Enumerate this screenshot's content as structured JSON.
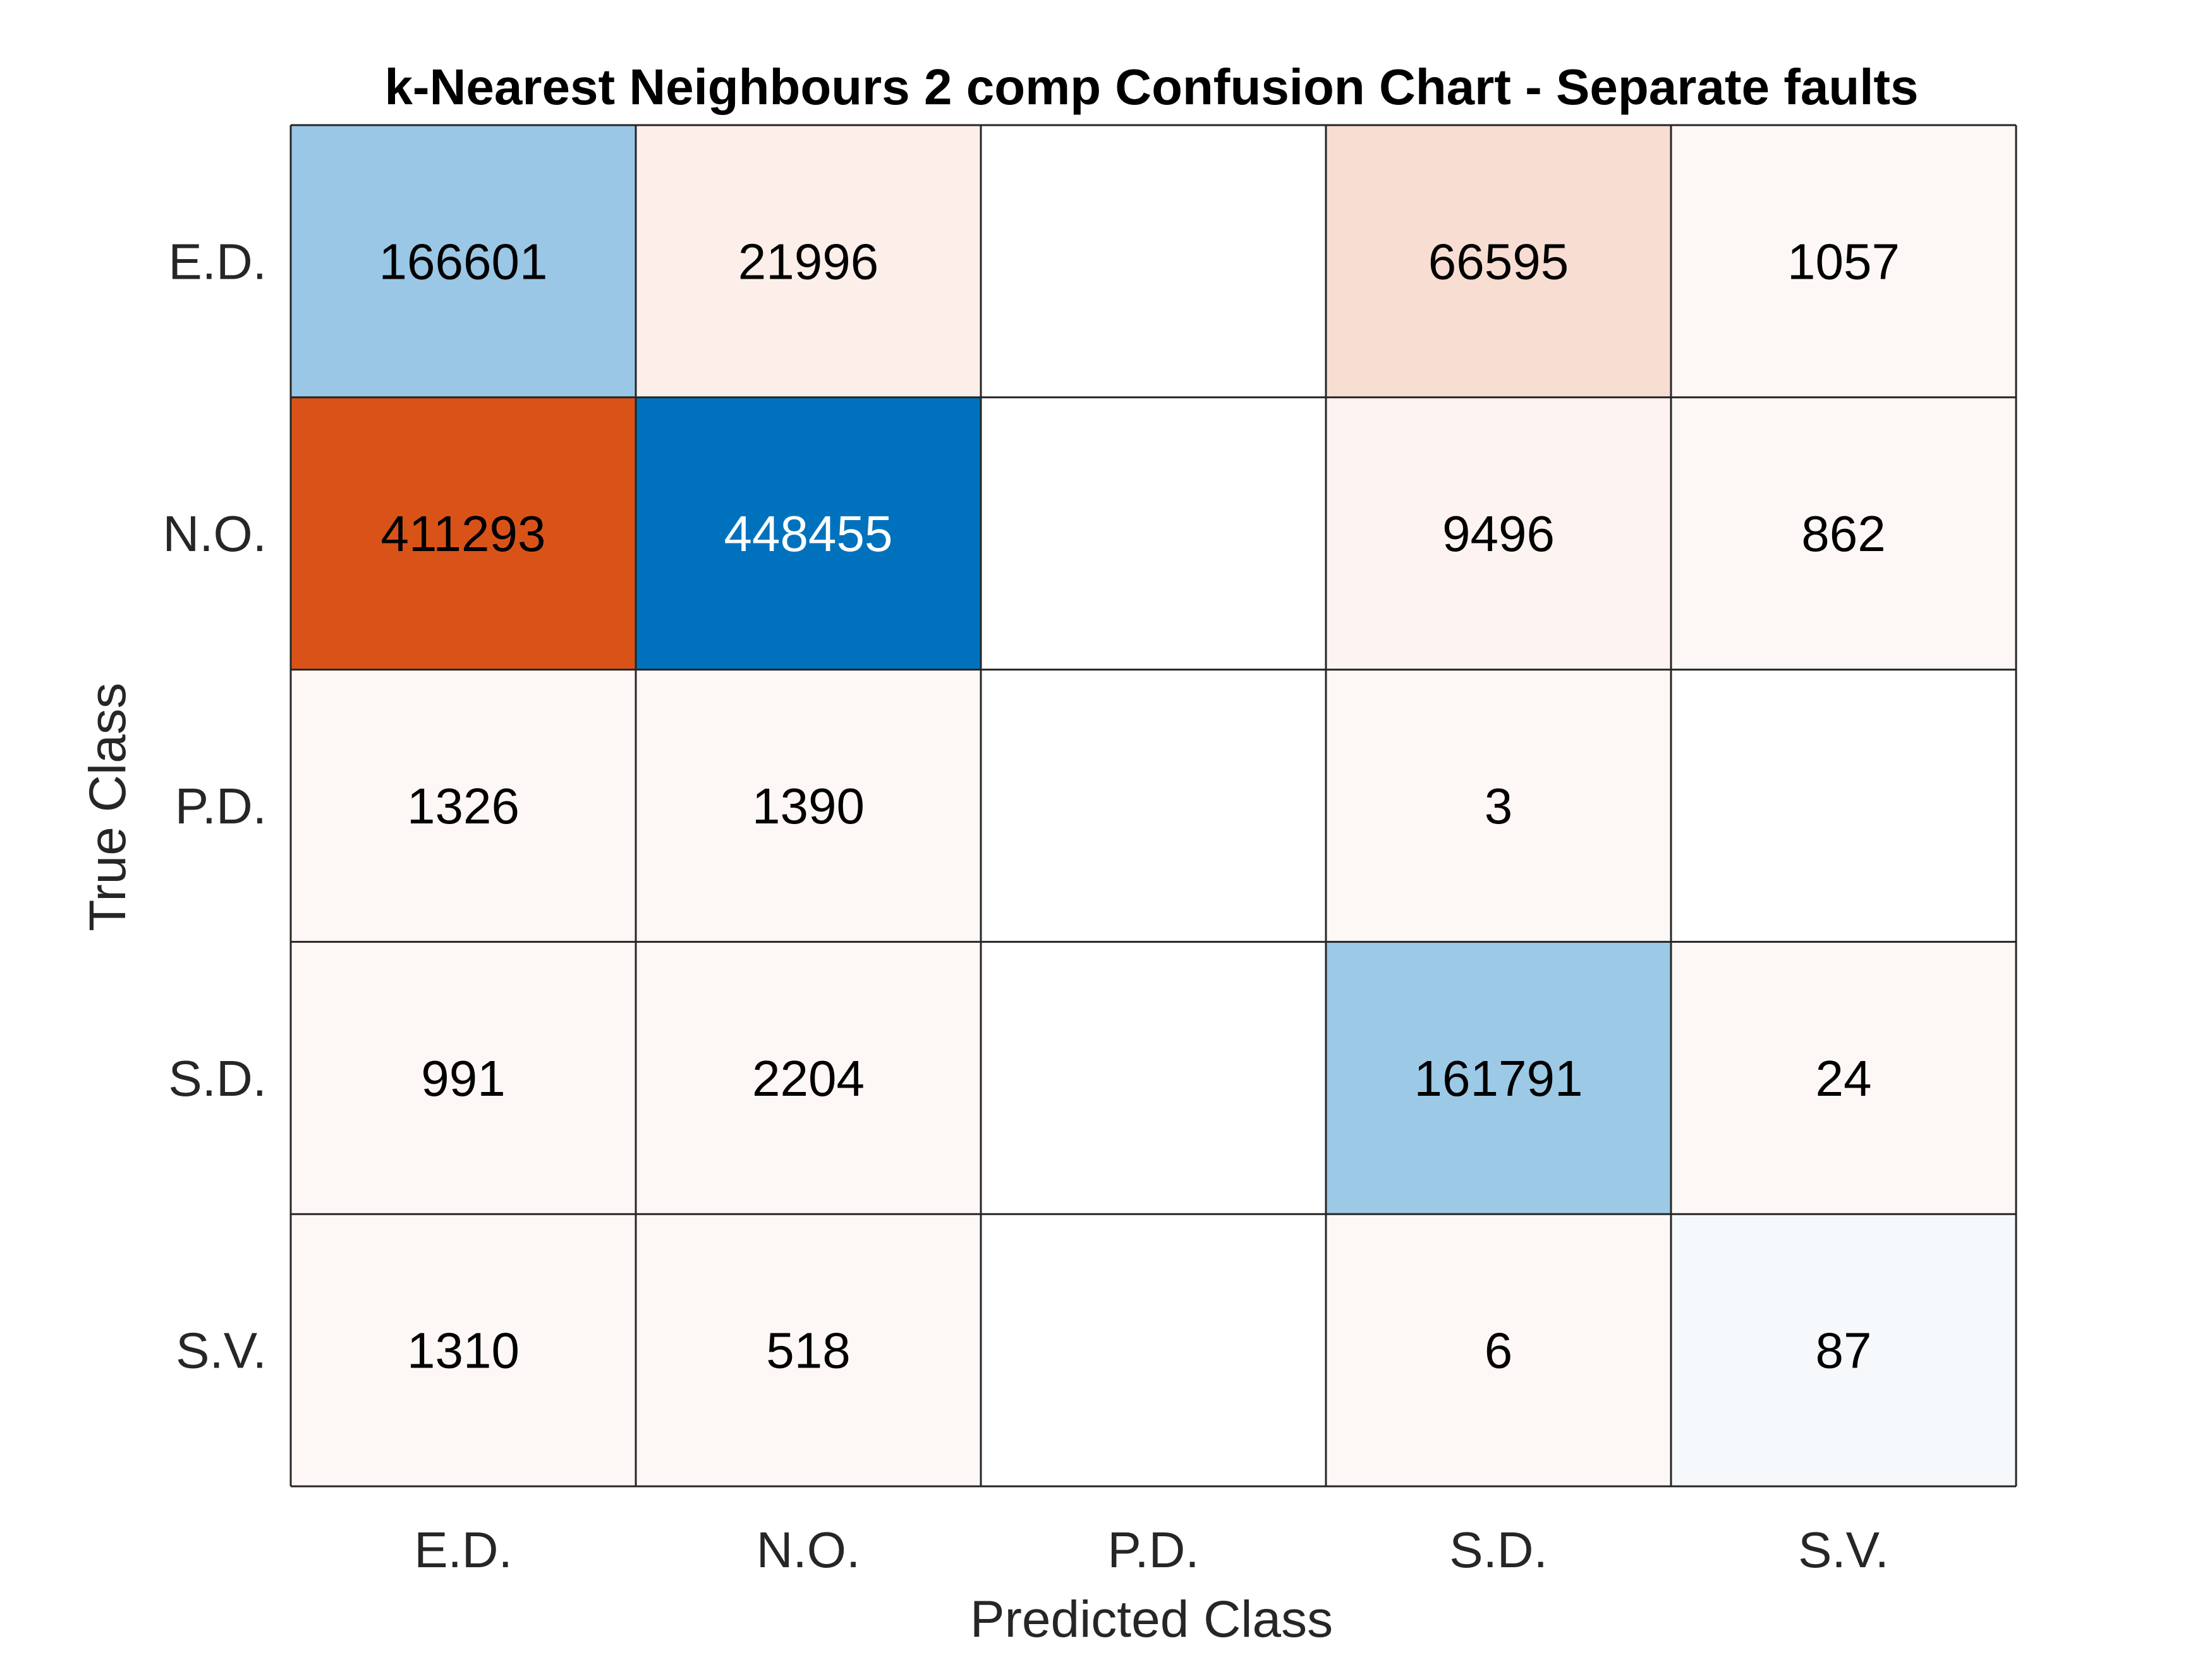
{
  "chart_data": {
    "type": "heatmap",
    "title": "k-Nearest Neighbours 2 comp Confusion Chart - Separate faults",
    "xlabel": "Predicted Class",
    "ylabel": "True Class",
    "x_categories": [
      "E.D.",
      "N.O.",
      "P.D.",
      "S.D.",
      "S.V."
    ],
    "y_categories": [
      "E.D.",
      "N.O.",
      "P.D.",
      "S.D.",
      "S.V."
    ],
    "values": [
      [
        166601,
        21996,
        null,
        66595,
        1057
      ],
      [
        411293,
        448455,
        null,
        9496,
        862
      ],
      [
        1326,
        1390,
        null,
        3,
        null
      ],
      [
        991,
        2204,
        null,
        161791,
        24
      ],
      [
        1310,
        518,
        null,
        6,
        87
      ]
    ],
    "colors": {
      "correct_max": "#0072bd",
      "incorrect_max": "#d95319",
      "empty": "#ffffff",
      "grid": "#262626",
      "text_dark": "#000000",
      "text_light": "#ffffff"
    }
  }
}
